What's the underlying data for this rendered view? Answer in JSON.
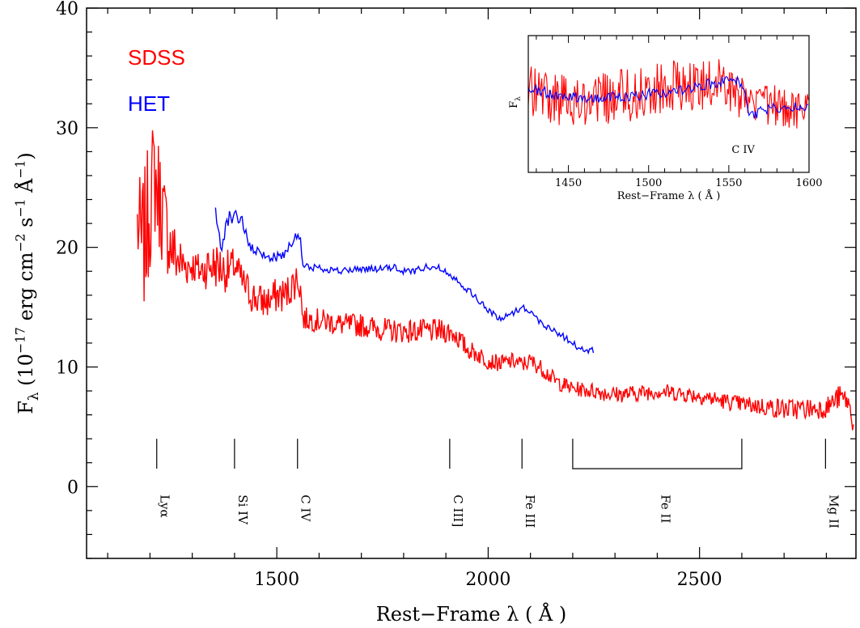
{
  "chart_data": {
    "type": "line",
    "xlabel": "Rest−Frame λ ( Å )",
    "ylabel": "Fλ (10⁻¹⁷ erg cm⁻² s⁻¹ Å⁻¹)",
    "ylabel_parts": [
      "F",
      "λ",
      " (10",
      "−17",
      " erg cm",
      "−2",
      " s",
      "−1",
      " Å",
      "−1",
      ")"
    ],
    "xlim": [
      1050,
      2870
    ],
    "ylim": [
      -6,
      40
    ],
    "x_ticks": [
      1500,
      2000,
      2500
    ],
    "x_tick_labels": [
      "1500",
      "2000",
      "2500"
    ],
    "y_ticks": [
      0,
      10,
      20,
      30,
      40
    ],
    "y_tick_labels": [
      "0",
      "10",
      "20",
      "30",
      "40"
    ],
    "colors": {
      "sdss": "#ff0000",
      "het": "#0000ff",
      "axes": "#000000"
    },
    "series": [
      {
        "name": "SDSS",
        "color": "#ff0000",
        "x": [
          1170,
          1180,
          1190,
          1200,
          1210,
          1216,
          1225,
          1235,
          1250,
          1265,
          1280,
          1300,
          1320,
          1340,
          1360,
          1380,
          1400,
          1420,
          1440,
          1460,
          1480,
          1500,
          1520,
          1540,
          1550,
          1556,
          1562,
          1580,
          1620,
          1660,
          1700,
          1740,
          1780,
          1820,
          1860,
          1900,
          1920,
          1950,
          1980,
          2000,
          2030,
          2060,
          2080,
          2100,
          2130,
          2160,
          2200,
          2250,
          2300,
          2350,
          2400,
          2450,
          2500,
          2550,
          2600,
          2650,
          2700,
          2750,
          2800,
          2830,
          2850,
          2865
        ],
        "y": [
          22,
          20,
          21,
          24,
          26,
          25,
          24,
          22,
          20,
          19,
          18.5,
          18.5,
          18,
          18.5,
          18.5,
          18,
          18.5,
          17,
          16,
          15.5,
          15.5,
          16,
          16,
          17,
          17.5,
          16.5,
          14,
          14,
          13.8,
          13.5,
          13.5,
          13.2,
          13,
          13,
          13,
          13,
          12.8,
          11.5,
          11,
          10.5,
          10.3,
          10.5,
          10.2,
          10.5,
          9.8,
          8.8,
          8.2,
          8,
          7.7,
          7.8,
          8,
          7.8,
          7.6,
          7.2,
          6.9,
          6.7,
          6.5,
          6.5,
          6.6,
          7.5,
          7.2,
          5.2
        ],
        "noise": [
          4,
          6,
          6,
          6,
          5,
          5,
          5,
          4,
          3,
          2.5,
          2,
          1.5,
          1.5,
          2,
          2,
          1.8,
          1.5,
          1.5,
          1.5,
          1.5,
          1.5,
          1.5,
          1.5,
          1.5,
          1.5,
          1.5,
          1,
          1,
          1,
          1,
          1,
          1,
          1,
          1,
          1,
          1,
          1,
          0.8,
          0.8,
          0.7,
          0.7,
          0.7,
          0.7,
          0.7,
          0.7,
          0.7,
          0.6,
          0.7,
          0.7,
          0.7,
          0.7,
          0.7,
          0.7,
          0.7,
          0.7,
          0.8,
          0.9,
          0.9,
          0.9,
          1,
          1,
          1
        ]
      },
      {
        "name": "HET",
        "color": "#0000ff",
        "x": [
          1355,
          1365,
          1370,
          1380,
          1390,
          1400,
          1410,
          1420,
          1430,
          1440,
          1460,
          1480,
          1500,
          1520,
          1530,
          1545,
          1550,
          1556,
          1562,
          1570,
          1600,
          1650,
          1700,
          1750,
          1780,
          1800,
          1820,
          1850,
          1870,
          1900,
          1920,
          1950,
          1980,
          2000,
          2030,
          2060,
          2080,
          2100,
          2120,
          2150,
          2180,
          2200,
          2220,
          2240,
          2250
        ],
        "y": [
          22.5,
          21,
          20.5,
          22,
          22.5,
          23,
          22.5,
          22,
          20.5,
          19.8,
          19.5,
          19.2,
          19.2,
          19.5,
          20.3,
          20.8,
          21,
          20.5,
          18.5,
          18.3,
          18.3,
          18,
          18.2,
          18.2,
          18.3,
          18,
          18,
          18.3,
          18.5,
          18,
          17.5,
          16.5,
          15.5,
          14.7,
          14,
          14.6,
          15,
          14.7,
          13.8,
          13.2,
          12.5,
          12,
          11.5,
          11.3,
          11.4
        ],
        "noise": [
          1,
          1,
          1,
          0.8,
          0.8,
          0.8,
          0.8,
          0.6,
          0.5,
          0.5,
          0.4,
          0.4,
          0.4,
          0.4,
          0.4,
          0.4,
          0.4,
          0.4,
          0.4,
          0.4,
          0.3,
          0.3,
          0.3,
          0.3,
          0.3,
          0.3,
          0.3,
          0.3,
          0.3,
          0.3,
          0.3,
          0.3,
          0.3,
          0.3,
          0.3,
          0.3,
          0.3,
          0.3,
          0.3,
          0.3,
          0.3,
          0.3,
          0.3,
          0.3,
          0.3
        ]
      }
    ],
    "legend": {
      "placement": "top-left",
      "entries": [
        "SDSS",
        "HET"
      ]
    },
    "line_markers": [
      {
        "label": "Lyα",
        "x": 1216,
        "y_top": 4,
        "y_bottom": 1.5
      },
      {
        "label": "Si IV",
        "x": 1400,
        "y_top": 4,
        "y_bottom": 1.5
      },
      {
        "label": "C IV",
        "x": 1549,
        "y_top": 4,
        "y_bottom": 1.5
      },
      {
        "label": "C III]",
        "x": 1909,
        "y_top": 4,
        "y_bottom": 1.5
      },
      {
        "label": "Fe III",
        "x": 2080,
        "y_top": 4,
        "y_bottom": 1.5
      },
      {
        "label": "Mg II",
        "x": 2798,
        "y_top": 4,
        "y_bottom": 1.5
      }
    ],
    "fe_ii_bracket": {
      "label": "Fe II",
      "x_start": 2200,
      "x_end": 2600,
      "y_top": 4,
      "y_bottom": 1.5
    },
    "inset": {
      "xlabel": "Rest−Frame λ ( Å )",
      "ylabel": "Fλ",
      "ylabel_parts": [
        "F",
        "λ"
      ],
      "xlim": [
        1425,
        1600
      ],
      "ylim": [
        0,
        1
      ],
      "x_ticks": [
        1450,
        1500,
        1550,
        1600
      ],
      "x_tick_labels": [
        "1450",
        "1500",
        "1550",
        "1600"
      ],
      "annotation": "C IV",
      "annotation_x": 1562,
      "series": [
        {
          "name": "SDSS",
          "color": "#ff0000",
          "x": [
            1425,
            1440,
            1460,
            1480,
            1500,
            1515,
            1530,
            1545,
            1555,
            1560,
            1565,
            1575,
            1590,
            1600
          ],
          "y": [
            0.6,
            0.55,
            0.52,
            0.55,
            0.58,
            0.62,
            0.66,
            0.65,
            0.62,
            0.5,
            0.45,
            0.5,
            0.47,
            0.45
          ],
          "noise": [
            0.2,
            0.2,
            0.2,
            0.2,
            0.2,
            0.2,
            0.2,
            0.2,
            0.2,
            0.18,
            0.15,
            0.15,
            0.15,
            0.15
          ]
        },
        {
          "name": "HET",
          "color": "#0000ff",
          "x": [
            1425,
            1440,
            1460,
            1480,
            1500,
            1520,
            1535,
            1545,
            1555,
            1560,
            1563,
            1570,
            1585,
            1600
          ],
          "y": [
            0.62,
            0.57,
            0.55,
            0.55,
            0.57,
            0.6,
            0.64,
            0.66,
            0.67,
            0.62,
            0.4,
            0.45,
            0.48,
            0.47
          ],
          "noise": [
            0.04,
            0.04,
            0.04,
            0.04,
            0.04,
            0.04,
            0.04,
            0.04,
            0.04,
            0.04,
            0.04,
            0.04,
            0.04,
            0.04
          ]
        }
      ]
    }
  }
}
